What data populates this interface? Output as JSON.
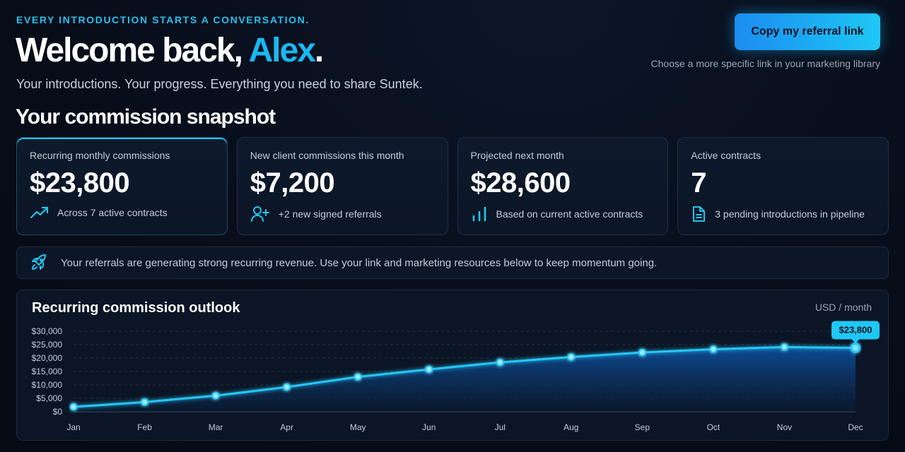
{
  "header": {
    "eyebrow": "EVERY INTRODUCTION STARTS A CONVERSATION.",
    "welcome_prefix": "Welcome back, ",
    "user_name": "Alex",
    "welcome_suffix": ".",
    "subtitle": "Your introductions. Your progress. Everything you need to share Suntek.",
    "cta_label": "Copy my referral link",
    "cta_note": "Choose a more specific link in your marketing library"
  },
  "snapshot": {
    "title": "Your commission snapshot",
    "cards": [
      {
        "label": "Recurring monthly commissions",
        "value": "$23,800",
        "footnote": "Across 7 active contracts",
        "icon": "trending-up-icon"
      },
      {
        "label": "New client commissions this month",
        "value": "$7,200",
        "footnote": "+2 new signed referrals",
        "icon": "user-plus-icon"
      },
      {
        "label": "Projected next month",
        "value": "$28,600",
        "footnote": "Based on current active contracts",
        "icon": "bar-chart-icon"
      },
      {
        "label": "Active contracts",
        "value": "7",
        "footnote": "3 pending introductions in pipeline",
        "icon": "document-icon"
      }
    ]
  },
  "banner": {
    "icon": "rocket-icon",
    "text": "Your referrals are generating strong recurring revenue. Use your link and marketing resources below to keep momentum going."
  },
  "chart": {
    "title": "Recurring commission outlook",
    "unit": "USD / month"
  },
  "colors": {
    "accent": "#1ab8f3",
    "line": "#27c6f5",
    "area_top": "#0d4f9a",
    "area_bottom": "#0a1c35"
  },
  "chart_data": {
    "type": "area",
    "title": "Recurring commission outlook",
    "xlabel": "",
    "ylabel": "",
    "categories": [
      "Jan",
      "Feb",
      "Mar",
      "Apr",
      "May",
      "Jun",
      "Jul",
      "Aug",
      "Sep",
      "Oct",
      "Nov",
      "Dec"
    ],
    "values": [
      1800,
      3600,
      6000,
      9200,
      13000,
      15800,
      18400,
      20400,
      22100,
      23300,
      24100,
      23800
    ],
    "yticks": [
      "$0",
      "$5,000",
      "$10,000",
      "$15,000",
      "$20,000",
      "$25,000",
      "$30,000"
    ],
    "ylim": [
      0,
      30000
    ],
    "grid": true,
    "annotation": "$23,800"
  }
}
